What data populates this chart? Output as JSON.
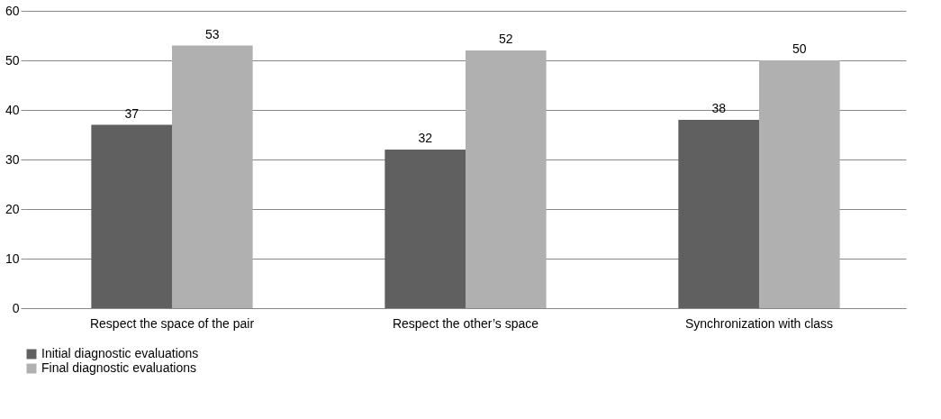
{
  "chart_data": {
    "type": "bar",
    "categories": [
      "Respect the space of the pair",
      "Respect the other’s space",
      "Synchronization with class"
    ],
    "series": [
      {
        "name": "Initial diagnostic evaluations",
        "color": "#606060",
        "values": [
          37,
          32,
          38
        ]
      },
      {
        "name": "Final diagnostic evaluations",
        "color": "#b0b0b0",
        "values": [
          53,
          52,
          50
        ]
      }
    ],
    "ylim": [
      0,
      60
    ],
    "yticks": [
      0,
      10,
      20,
      30,
      40,
      50,
      60
    ],
    "grid": "y",
    "legend": "bottom",
    "data_labels": true
  }
}
